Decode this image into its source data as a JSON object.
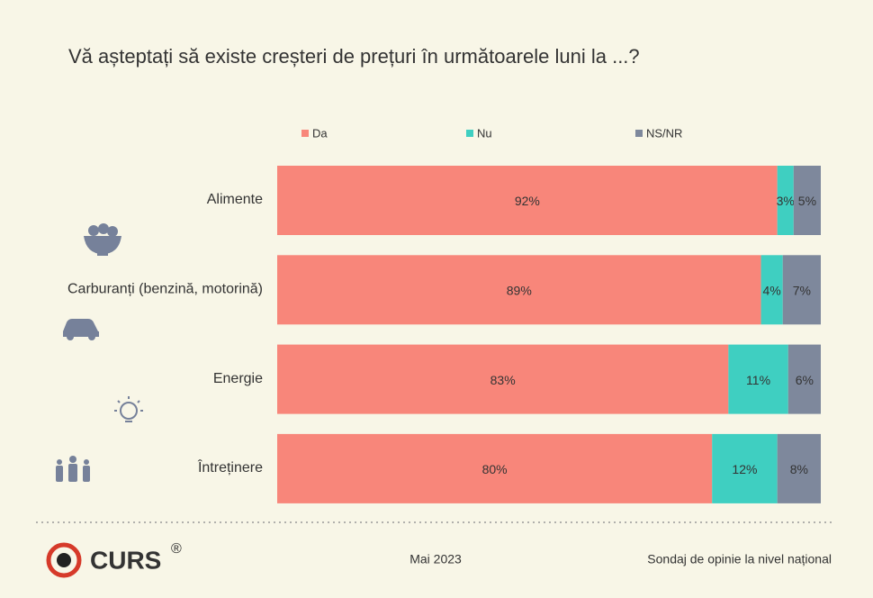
{
  "chart_data": {
    "type": "stacked-bar-horizontal",
    "title": "Vă așteptați să existe creșteri de prețuri în următoarele luni la ...?",
    "categories": [
      "Alimente",
      "Carburanți (benzină, motorină)",
      "Energie",
      "Întreținere"
    ],
    "legend": "top",
    "series": [
      {
        "name": "Da",
        "color": "#f8867a",
        "values": [
          92,
          89,
          83,
          80
        ],
        "value_labels": [
          "92%",
          "89%",
          "83%",
          "80%"
        ]
      },
      {
        "name": "Nu",
        "color": "#3fcfc1",
        "values": [
          3,
          4,
          11,
          12
        ],
        "value_labels": [
          "3%",
          "4%",
          "11%",
          "12%"
        ]
      },
      {
        "name": "NS/NR",
        "color": "#7e889c",
        "values": [
          5,
          7,
          6,
          8
        ],
        "value_labels": [
          "5%",
          "7%",
          "6%",
          "8%"
        ]
      }
    ]
  },
  "footer": {
    "logo": "CURS",
    "logo_mark": "®",
    "date": "Mai 2023",
    "note": "Sondaj de opinie la nivel național"
  }
}
